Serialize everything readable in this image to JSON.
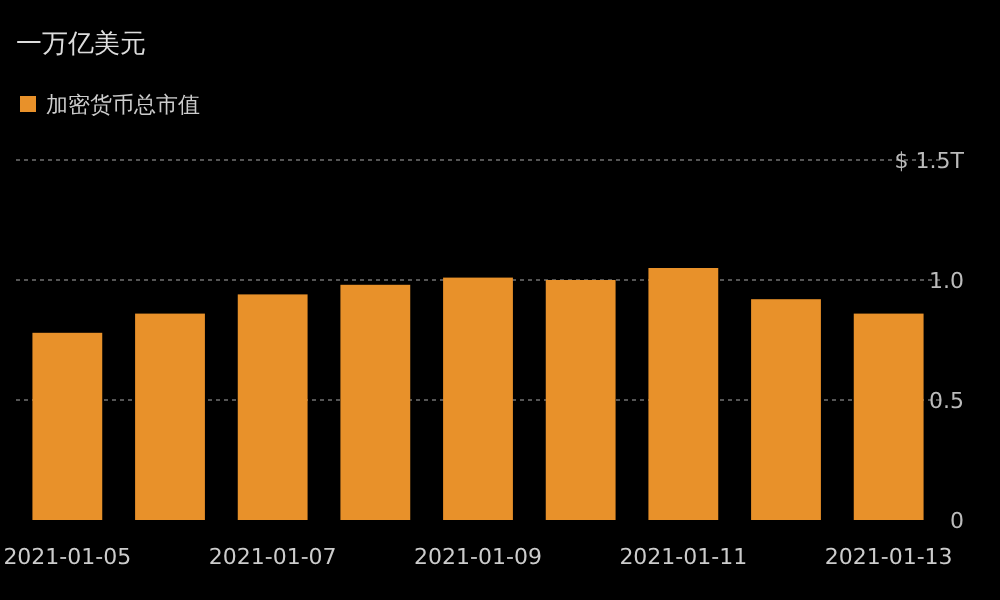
{
  "chart_data": {
    "type": "bar",
    "title": "一万亿美元",
    "categories": [
      "2021-01-05",
      null,
      "2021-01-07",
      null,
      "2021-01-09",
      null,
      "2021-01-11",
      null,
      "2021-01-13"
    ],
    "series": [
      {
        "name": "加密货币总市值",
        "color": "#e8912a",
        "values": [
          0.78,
          0.86,
          0.94,
          0.98,
          1.01,
          1.0,
          1.05,
          0.92,
          0.86
        ]
      }
    ],
    "ylim": [
      0,
      1.5
    ],
    "yticks": [
      0,
      0.5,
      {
        "value": 1.0,
        "label": "1.0"
      },
      {
        "value": 1.5,
        "label": "$ 1.5T"
      }
    ],
    "grid": "y",
    "legend": "top left"
  }
}
